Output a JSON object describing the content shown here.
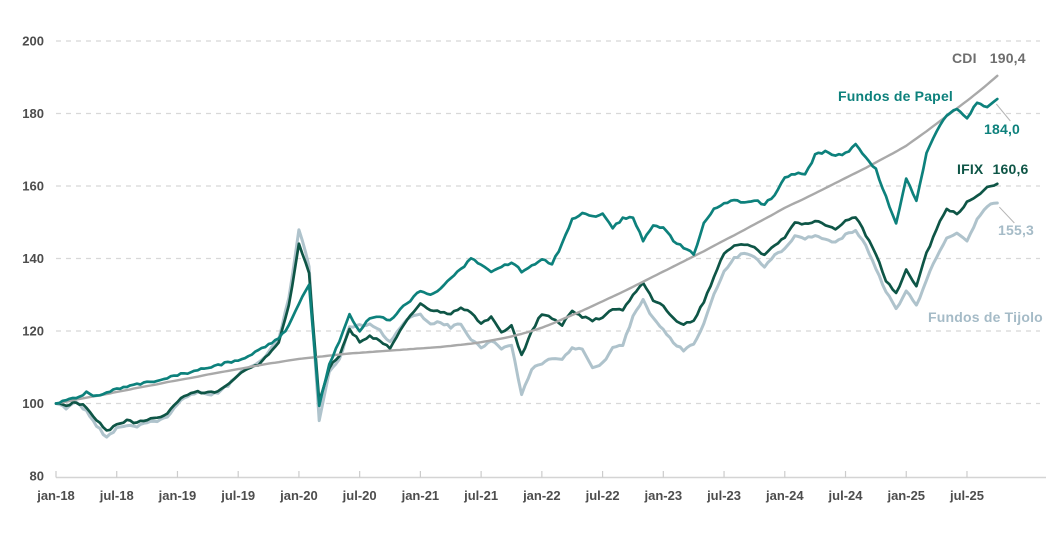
{
  "chart_data": {
    "type": "line",
    "title": "",
    "x_unit": "month",
    "x_start_label": "jan-18",
    "x_end_label": "jul-25",
    "points_per_series": 94,
    "x_tick_labels": [
      "jan-18",
      "jul-18",
      "jan-19",
      "jul-19",
      "jan-20",
      "jul-20",
      "jan-21",
      "jul-21",
      "jan-22",
      "jul-22",
      "jan-23",
      "jul-23",
      "jan-24",
      "jul-24",
      "jan-25",
      "jul-25"
    ],
    "y_ticks": [
      80,
      100,
      120,
      140,
      160,
      180,
      200
    ],
    "ylim": [
      80,
      200
    ],
    "grid": "dashed-horizontal",
    "background_color": "#ffffff",
    "grid_color": "#d8d8d8",
    "axis_text_color": "#4d4d4d",
    "number_format": "decimal-comma",
    "series": [
      {
        "key": "cdi",
        "name": "CDI",
        "final_value": 190.4,
        "final_label": "190,4",
        "color": "#a9a9a9",
        "label_color": "#6e6e6e",
        "values": [
          100.0,
          100.5,
          101.1,
          101.6,
          102.1,
          102.6,
          103.2,
          103.7,
          104.3,
          104.8,
          105.3,
          105.9,
          106.4,
          106.9,
          107.4,
          108.0,
          108.5,
          109.0,
          109.5,
          110.0,
          110.5,
          111.0,
          111.4,
          111.9,
          112.3,
          112.6,
          112.9,
          113.2,
          113.5,
          113.8,
          114.0,
          114.2,
          114.4,
          114.6,
          114.8,
          115.0,
          115.2,
          115.4,
          115.6,
          115.9,
          116.2,
          116.5,
          116.9,
          117.4,
          117.9,
          118.5,
          119.2,
          120.0,
          120.9,
          122.0,
          123.2,
          124.4,
          125.6,
          126.9,
          128.2,
          129.5,
          130.8,
          132.2,
          133.6,
          135.0,
          136.4,
          137.8,
          139.2,
          140.6,
          142.0,
          143.5,
          145.0,
          146.4,
          147.9,
          149.4,
          150.9,
          152.4,
          154.0,
          155.3,
          156.6,
          158.0,
          159.4,
          160.8,
          162.2,
          163.6,
          165.0,
          166.5,
          168.0,
          169.5,
          171.1,
          173.1,
          175.1,
          177.2,
          179.3,
          181.4,
          183.5,
          185.7,
          188.0,
          190.4
        ]
      },
      {
        "key": "papel",
        "name": "Fundos de Papel",
        "final_value": 184.0,
        "final_label": "184,0",
        "color": "#0d817c",
        "label_color": "#0d817c",
        "values": [
          100.0,
          100.8,
          101.5,
          103.0,
          102.0,
          103.2,
          104.2,
          104.6,
          105.2,
          105.8,
          106.4,
          107.2,
          108.0,
          108.4,
          109.2,
          109.8,
          110.6,
          111.4,
          112.0,
          113.0,
          114.6,
          116.2,
          117.8,
          121.5,
          127.5,
          132.5,
          99.5,
          111.0,
          117.0,
          124.5,
          120.0,
          123.5,
          124.0,
          123.0,
          126.0,
          128.5,
          131.0,
          129.8,
          131.5,
          134.5,
          137.0,
          140.0,
          138.5,
          136.2,
          137.5,
          139.0,
          136.5,
          138.0,
          140.0,
          138.5,
          144.0,
          151.0,
          152.5,
          151.5,
          152.5,
          148.5,
          151.0,
          151.5,
          144.8,
          149.0,
          148.3,
          145.0,
          143.0,
          141.2,
          149.5,
          153.5,
          155.2,
          156.0,
          155.4,
          156.0,
          155.0,
          157.5,
          162.5,
          163.5,
          163.0,
          168.5,
          169.5,
          168.5,
          169.0,
          171.5,
          168.0,
          164.5,
          157.0,
          149.5,
          162.0,
          156.0,
          169.0,
          175.0,
          179.5,
          181.5,
          178.5,
          183.0,
          181.5,
          184.0
        ]
      },
      {
        "key": "ifix",
        "name": "IFIX",
        "final_value": 160.6,
        "final_label": "160,6",
        "color": "#0e5546",
        "label_color": "#0e5546",
        "values": [
          100.0,
          99.3,
          100.5,
          99.0,
          95.5,
          92.3,
          94.3,
          95.2,
          94.8,
          95.5,
          95.8,
          97.5,
          100.5,
          102.5,
          103.3,
          103.0,
          103.5,
          105.2,
          108.0,
          109.5,
          110.8,
          113.5,
          117.0,
          127.0,
          144.0,
          136.0,
          100.5,
          110.0,
          113.0,
          120.5,
          117.0,
          118.5,
          117.5,
          115.0,
          120.0,
          124.5,
          127.3,
          126.0,
          125.0,
          124.8,
          126.5,
          125.0,
          122.0,
          124.0,
          119.7,
          121.5,
          113.3,
          120.0,
          124.8,
          123.5,
          121.7,
          125.5,
          124.0,
          123.0,
          123.4,
          126.2,
          125.5,
          130.0,
          133.0,
          128.5,
          127.0,
          123.5,
          121.8,
          123.0,
          128.0,
          135.0,
          141.5,
          143.5,
          144.0,
          143.0,
          141.0,
          143.5,
          146.0,
          150.0,
          149.5,
          150.5,
          149.0,
          148.0,
          150.5,
          151.5,
          146.5,
          141.4,
          134.0,
          130.3,
          137.0,
          132.4,
          141.4,
          148.3,
          154.0,
          152.0,
          155.4,
          157.0,
          159.5,
          160.6
        ]
      },
      {
        "key": "tijolo",
        "name": "Fundos de Tijolo",
        "final_value": 155.3,
        "final_label": "155,3",
        "color": "#afc3cc",
        "label_color": "#a5bbc7",
        "values": [
          100.0,
          98.8,
          100.2,
          98.0,
          94.0,
          90.5,
          93.2,
          94.0,
          93.5,
          95.0,
          94.8,
          96.5,
          100.0,
          102.0,
          103.0,
          102.5,
          103.0,
          105.0,
          108.0,
          110.0,
          111.0,
          114.0,
          118.0,
          129.0,
          148.0,
          138.0,
          95.0,
          109.0,
          112.0,
          121.0,
          121.5,
          122.0,
          120.0,
          117.0,
          121.0,
          124.0,
          124.5,
          122.0,
          122.5,
          121.0,
          122.0,
          117.5,
          115.4,
          117.5,
          115.0,
          116.0,
          102.5,
          109.5,
          111.0,
          112.5,
          112.4,
          115.4,
          115.0,
          110.0,
          111.0,
          115.5,
          116.3,
          124.0,
          128.4,
          123.4,
          120.5,
          117.0,
          114.5,
          116.5,
          122.0,
          130.0,
          136.5,
          140.0,
          141.5,
          140.5,
          137.5,
          141.0,
          142.5,
          146.0,
          145.5,
          146.5,
          145.5,
          144.5,
          146.5,
          148.0,
          143.5,
          137.2,
          131.0,
          126.0,
          131.0,
          127.0,
          134.0,
          140.5,
          145.5,
          147.0,
          144.5,
          151.0,
          154.5,
          155.3
        ]
      }
    ]
  }
}
